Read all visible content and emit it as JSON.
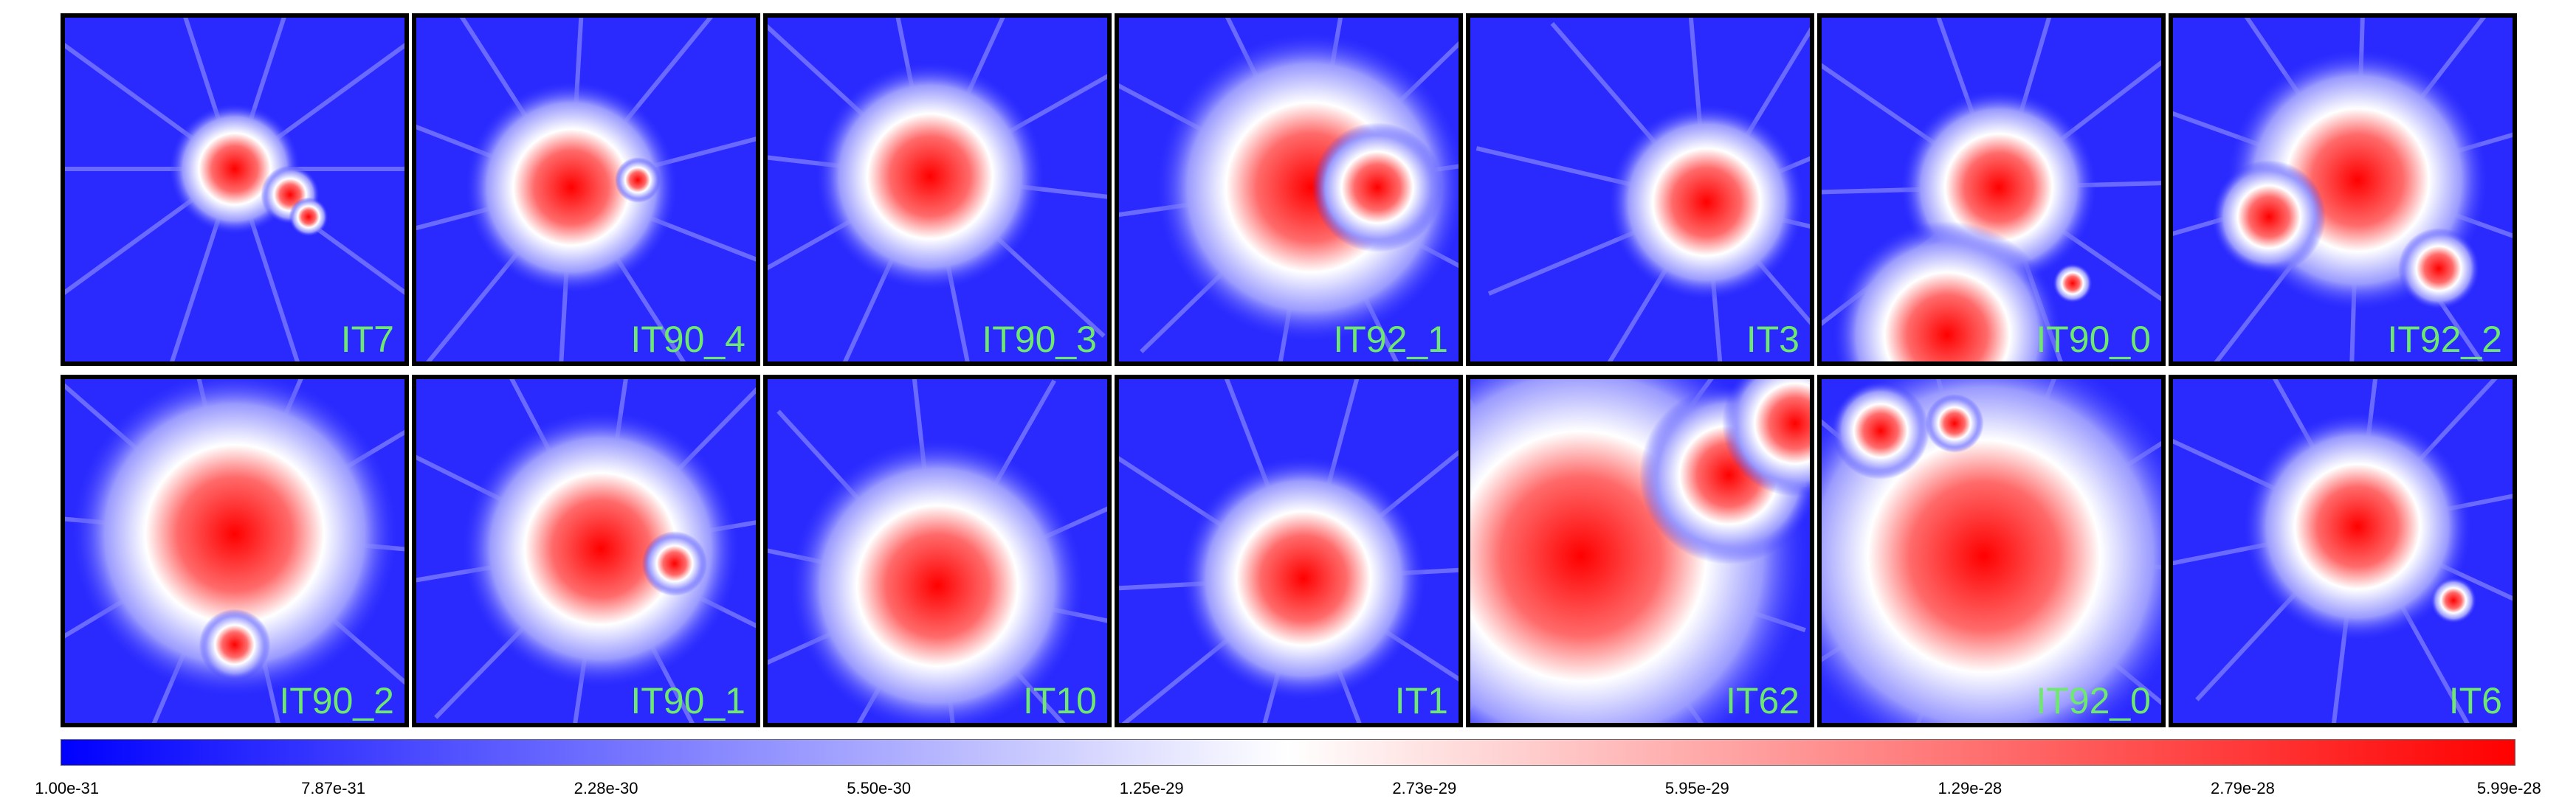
{
  "panels": [
    {
      "label": "IT7"
    },
    {
      "label": "IT90_4"
    },
    {
      "label": "IT90_3"
    },
    {
      "label": "IT92_1"
    },
    {
      "label": "IT3"
    },
    {
      "label": "IT90_0"
    },
    {
      "label": "IT92_2"
    },
    {
      "label": "IT90_2"
    },
    {
      "label": "IT90_1"
    },
    {
      "label": "IT10"
    },
    {
      "label": "IT1"
    },
    {
      "label": "IT62"
    },
    {
      "label": "IT92_0"
    },
    {
      "label": "IT6"
    }
  ],
  "colorbar": {
    "colors": [
      "#0000ff",
      "#ffffff",
      "#ff0000"
    ],
    "ticks": [
      "1.00e-31",
      "7.87e-31",
      "2.28e-30",
      "5.50e-30",
      "1.25e-29",
      "2.73e-29",
      "5.95e-29",
      "1.29e-28",
      "2.79e-28",
      "5.99e-28"
    ]
  }
}
